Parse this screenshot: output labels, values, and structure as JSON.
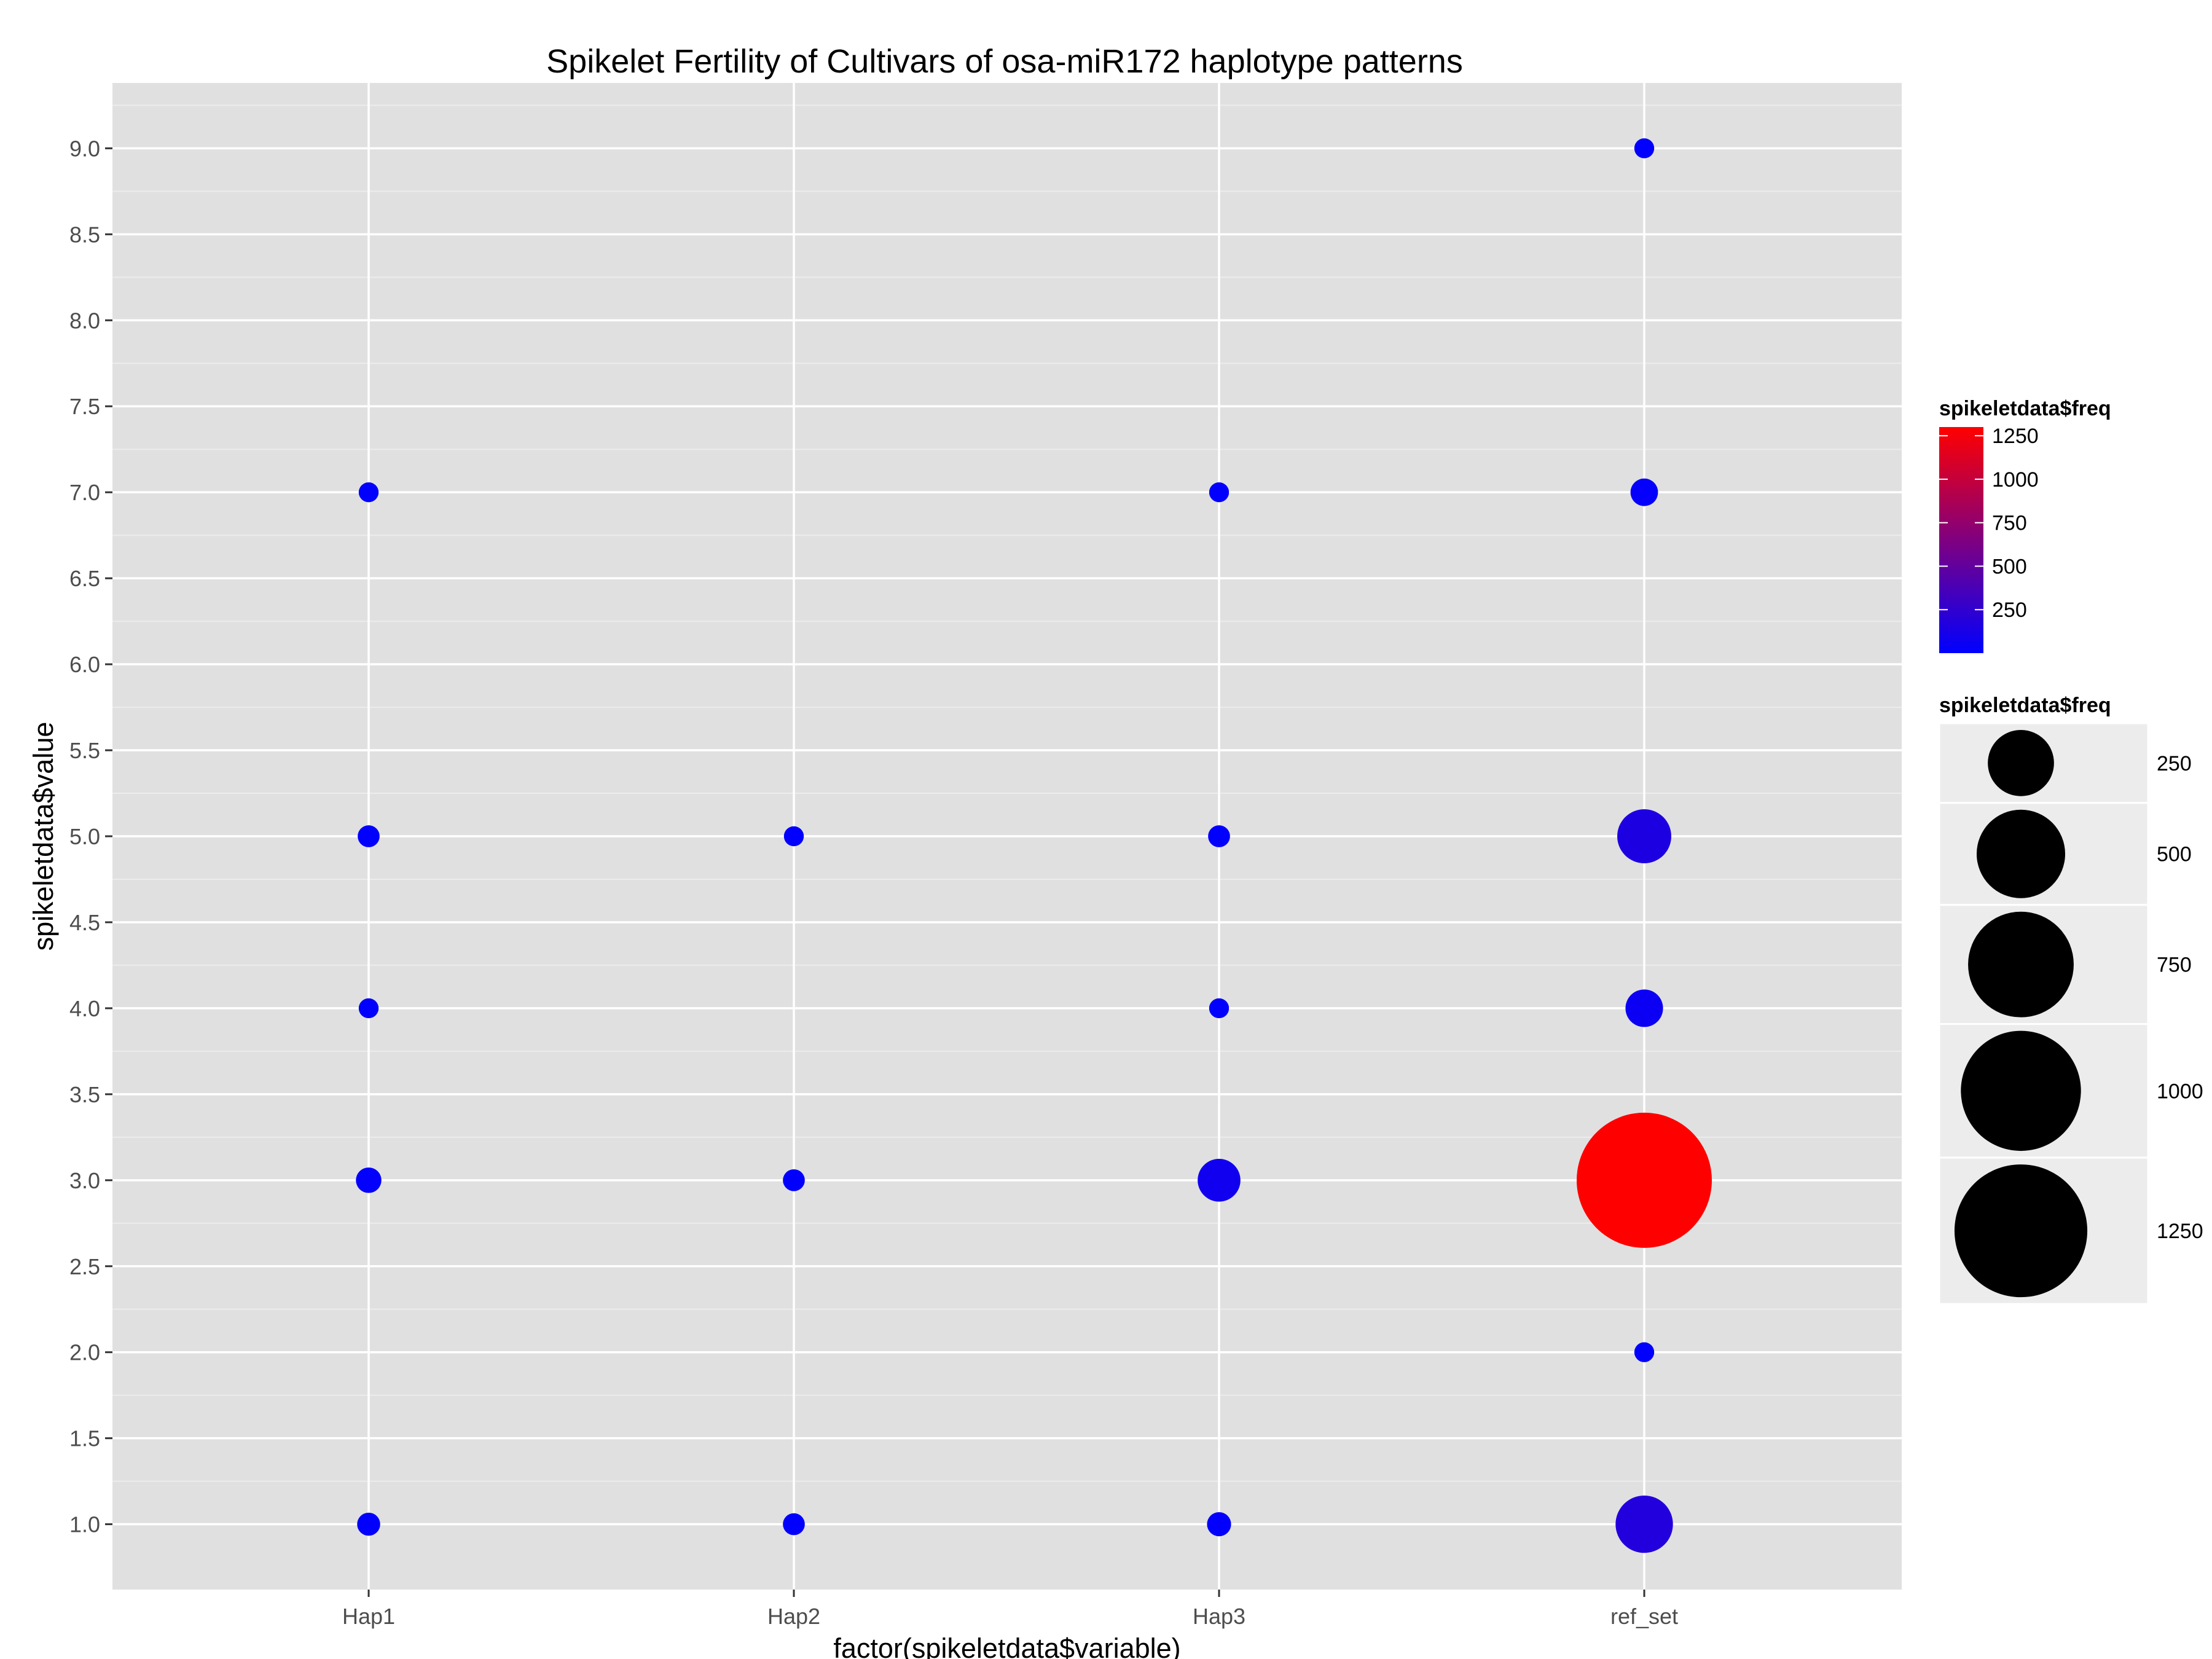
{
  "chart_data": {
    "type": "scatter",
    "title": "Spikelet Fertility of Cultivars of osa-miR172 haplotype patterns",
    "xlabel": "factor(spikeletdata$variable)",
    "ylabel": "spikeletdata$value",
    "categories": [
      "Hap1",
      "Hap2",
      "Hap3",
      "ref_set"
    ],
    "ylim": [
      0.62,
      9.38
    ],
    "yticks": [
      1.0,
      1.5,
      2.0,
      2.5,
      3.0,
      3.5,
      4.0,
      4.5,
      5.0,
      5.5,
      6.0,
      6.5,
      7.0,
      7.5,
      8.0,
      8.5,
      9.0
    ],
    "ytick_labels": [
      "1.0",
      "1.5",
      "2.0",
      "2.5",
      "3.0",
      "3.5",
      "4.0",
      "4.5",
      "5.0",
      "5.5",
      "6.0",
      "6.5",
      "7.0",
      "7.5",
      "8.0",
      "8.5",
      "9.0"
    ],
    "grid": true,
    "freq_range": [
      1,
      1300
    ],
    "points": [
      {
        "x": "Hap1",
        "y": 7,
        "freq": 5
      },
      {
        "x": "Hap1",
        "y": 5,
        "freq": 8
      },
      {
        "x": "Hap1",
        "y": 4,
        "freq": 5
      },
      {
        "x": "Hap1",
        "y": 3,
        "freq": 15
      },
      {
        "x": "Hap1",
        "y": 1,
        "freq": 10
      },
      {
        "x": "Hap2",
        "y": 5,
        "freq": 5
      },
      {
        "x": "Hap2",
        "y": 3,
        "freq": 8
      },
      {
        "x": "Hap2",
        "y": 1,
        "freq": 8
      },
      {
        "x": "Hap3",
        "y": 7,
        "freq": 5
      },
      {
        "x": "Hap3",
        "y": 5,
        "freq": 8
      },
      {
        "x": "Hap3",
        "y": 4,
        "freq": 5
      },
      {
        "x": "Hap3",
        "y": 3,
        "freq": 80
      },
      {
        "x": "Hap3",
        "y": 1,
        "freq": 12
      },
      {
        "x": "ref_set",
        "y": 9,
        "freq": 5
      },
      {
        "x": "ref_set",
        "y": 7,
        "freq": 20
      },
      {
        "x": "ref_set",
        "y": 5,
        "freq": 150
      },
      {
        "x": "ref_set",
        "y": 4,
        "freq": 55
      },
      {
        "x": "ref_set",
        "y": 3,
        "freq": 1300
      },
      {
        "x": "ref_set",
        "y": 2,
        "freq": 5
      },
      {
        "x": "ref_set",
        "y": 1,
        "freq": 175
      }
    ],
    "legend": {
      "placement": "right",
      "color": {
        "title": "spikeletdata$freq",
        "low_color": "#0000ff",
        "high_color": "#ff0000",
        "breaks": [
          250,
          500,
          750,
          1000,
          1250
        ],
        "labels": [
          "250",
          "500",
          "750",
          "1000",
          "1250"
        ]
      },
      "size": {
        "title": "spikeletdata$freq",
        "breaks": [
          250,
          500,
          750,
          1000,
          1250
        ],
        "labels": [
          "250",
          "500",
          "750",
          "1000",
          "1250"
        ]
      }
    },
    "colors": {
      "panel_background": "#e0e0e0",
      "grid_major": "#ffffff",
      "grid_minor": "#ececec",
      "legend_key_background": "#ececec",
      "size_key_fill": "#000000"
    }
  }
}
